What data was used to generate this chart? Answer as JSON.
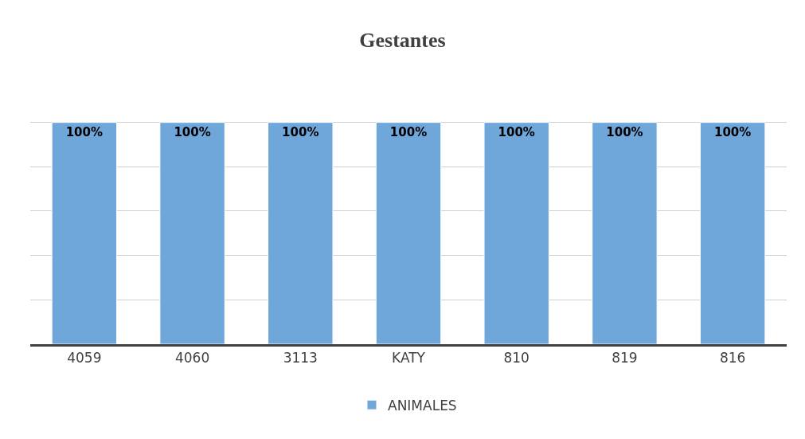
{
  "chart_data": {
    "type": "bar",
    "title": "Gestantes",
    "categories": [
      "4059",
      "4060",
      "3113",
      "KATY",
      "810",
      "819",
      "816"
    ],
    "series": [
      {
        "name": "ANIMALES",
        "color": "#70a7db",
        "values": [
          100,
          100,
          100,
          100,
          100,
          100,
          100
        ],
        "value_labels": [
          "100%",
          "100%",
          "100%",
          "100%",
          "100%",
          "100%",
          "100%"
        ]
      }
    ],
    "yticks": [
      {
        "value": 0,
        "label": null
      },
      {
        "value": 20,
        "label": null
      },
      {
        "value": 40,
        "label": null
      },
      {
        "value": 60,
        "label": null
      },
      {
        "value": 80,
        "label": null
      },
      {
        "value": 100,
        "label": null
      }
    ],
    "grid": "y",
    "legend": "bottom",
    "tick_labels": "x"
  }
}
